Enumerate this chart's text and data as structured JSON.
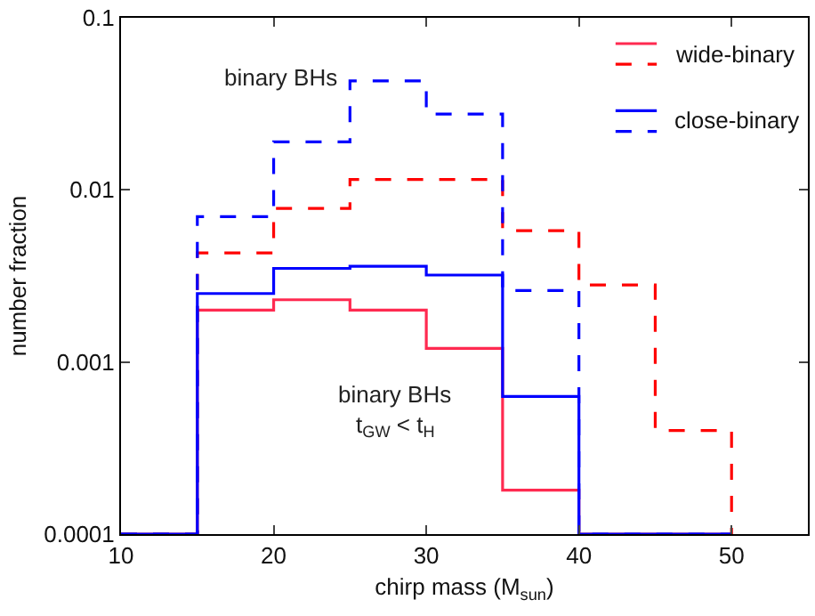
{
  "chart_data": {
    "type": "histogram",
    "xlabel": "chirp mass (M$_{sun}$)",
    "ylabel": "number fraction",
    "xlim": [
      10,
      55
    ],
    "xticks": [
      10,
      20,
      30,
      40,
      50
    ],
    "ylim": [
      0.0001,
      0.1
    ],
    "yticks": [
      0.0001,
      0.001,
      0.01,
      0.1
    ],
    "log": "y",
    "grid": false,
    "legend": "top right",
    "annotations": [
      "binary BHs",
      "binary BHs",
      "t$_{GW}$ < t$_{H}$"
    ],
    "bins": [
      10,
      15,
      20,
      25,
      30,
      35,
      40,
      45,
      50
    ],
    "series": [
      {
        "name": "wide-binary",
        "color": "#ff2a50",
        "line_style": "solid",
        "values": [
          0.0001,
          0.002,
          0.0023,
          0.002,
          0.0012,
          0.00018,
          0.0001,
          0.0001
        ]
      },
      {
        "color": "#ff0000",
        "line_style": "dashed",
        "values": [
          0.0001,
          0.0043,
          0.0078,
          0.0115,
          0.0115,
          0.0058,
          0.0028,
          0.0004
        ]
      },
      {
        "name": "close-binary",
        "color": "#0000ff",
        "line_style": "solid",
        "values": [
          0.0001,
          0.0025,
          0.0035,
          0.0036,
          0.0032,
          0.00063,
          0.0001,
          0.0001
        ]
      },
      {
        "color": "#0000ff",
        "line_style": "dashed",
        "values": [
          0.0001,
          0.007,
          0.019,
          0.043,
          0.0276,
          0.0026,
          0.0001,
          0.0001
        ]
      }
    ]
  }
}
